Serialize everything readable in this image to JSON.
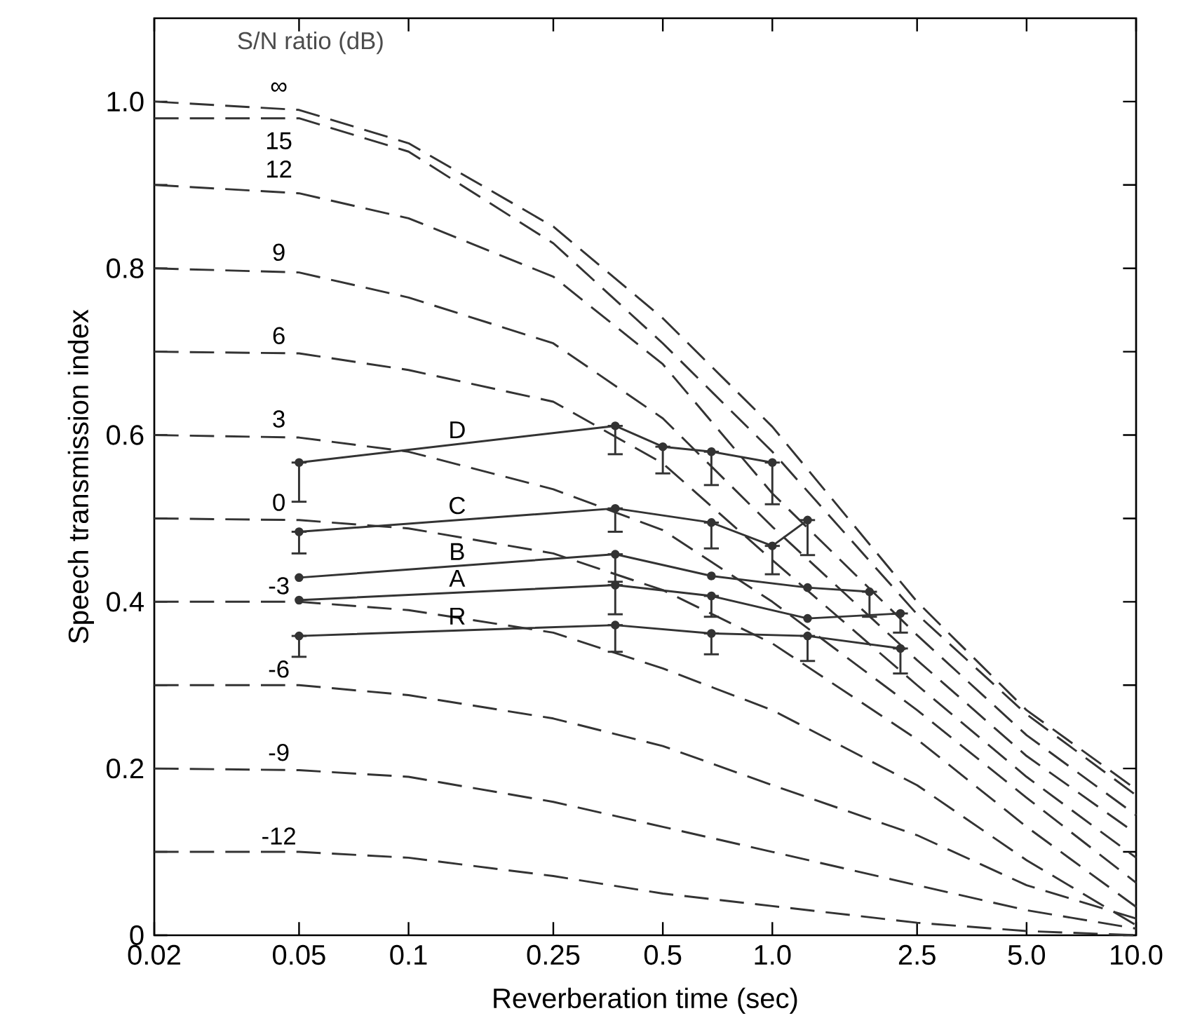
{
  "chart_data": {
    "type": "line",
    "xlabel": "Reverberation  time (sec)",
    "ylabel": "Speech transmission index",
    "legend_title": "S/N ratio (dB)",
    "log": "x",
    "xlim": [
      0.02,
      10
    ],
    "ylim": [
      0,
      1.1
    ],
    "xticks": [
      0.02,
      0.05,
      0.1,
      0.25,
      0.5,
      {
        "value": 1,
        "label": "1.0"
      },
      2.5,
      {
        "value": 5,
        "label": "5.0"
      },
      {
        "value": 10,
        "label": "10.0"
      }
    ],
    "yticks": [
      0,
      {
        "value": 0.1,
        "label": null
      },
      0.2,
      {
        "value": 0.3,
        "label": null
      },
      0.4,
      {
        "value": 0.5,
        "label": null
      },
      0.6,
      {
        "value": 0.7,
        "label": null
      },
      0.8,
      {
        "value": 0.9,
        "label": null
      },
      {
        "value": 1,
        "label": "1.0"
      }
    ],
    "series": [
      {
        "name": "∞",
        "color": "#333333",
        "line_style": "dashed",
        "marker": "none",
        "x": [
          0.02,
          0.05,
          0.1,
          0.25,
          0.5,
          1,
          2.5,
          5,
          10
        ],
        "values": [
          1.0,
          0.99,
          0.95,
          0.85,
          0.74,
          0.61,
          0.4,
          0.27,
          0.175
        ]
      },
      {
        "name": "15",
        "color": "#333333",
        "line_style": "dashed",
        "marker": "none",
        "x": [
          0.02,
          0.05,
          0.1,
          0.25,
          0.5,
          1,
          2.5,
          5,
          10
        ],
        "values": [
          0.98,
          0.98,
          0.94,
          0.83,
          0.71,
          0.58,
          0.385,
          0.265,
          0.168
        ]
      },
      {
        "name": "12",
        "color": "#333333",
        "line_style": "dashed",
        "marker": "none",
        "x": [
          0.02,
          0.05,
          0.1,
          0.25,
          0.5,
          1,
          2.5,
          5,
          10
        ],
        "values": [
          0.9,
          0.89,
          0.86,
          0.79,
          0.685,
          0.53,
          0.36,
          0.24,
          0.144
        ]
      },
      {
        "name": "9",
        "color": "#333333",
        "line_style": "dashed",
        "marker": "none",
        "x": [
          0.02,
          0.05,
          0.1,
          0.25,
          0.5,
          1,
          2.5,
          5,
          10
        ],
        "values": [
          0.8,
          0.795,
          0.765,
          0.71,
          0.62,
          0.49,
          0.33,
          0.215,
          0.122
        ]
      },
      {
        "name": "6",
        "color": "#333333",
        "line_style": "dashed",
        "marker": "none",
        "x": [
          0.02,
          0.05,
          0.1,
          0.25,
          0.5,
          1,
          2.5,
          5,
          10
        ],
        "values": [
          0.7,
          0.698,
          0.678,
          0.64,
          0.566,
          0.45,
          0.3,
          0.19,
          0.093
        ]
      },
      {
        "name": "3",
        "color": "#333333",
        "line_style": "dashed",
        "marker": "none",
        "x": [
          0.02,
          0.05,
          0.1,
          0.25,
          0.5,
          1,
          2.5,
          5,
          10
        ],
        "values": [
          0.6,
          0.597,
          0.58,
          0.535,
          0.486,
          0.4,
          0.27,
          0.165,
          0.063
        ]
      },
      {
        "name": "0",
        "color": "#333333",
        "line_style": "dashed",
        "marker": "none",
        "x": [
          0.02,
          0.05,
          0.1,
          0.25,
          0.5,
          1,
          2.5,
          5,
          10
        ],
        "values": [
          0.5,
          0.498,
          0.488,
          0.458,
          0.414,
          0.35,
          0.235,
          0.13,
          0.034
        ]
      },
      {
        "name": "-3",
        "color": "#333333",
        "line_style": "dashed",
        "marker": "none",
        "x": [
          0.02,
          0.05,
          0.1,
          0.25,
          0.5,
          1,
          2.5,
          5,
          10
        ],
        "values": [
          0.4,
          0.4,
          0.39,
          0.363,
          0.32,
          0.27,
          0.18,
          0.09,
          0.012
        ]
      },
      {
        "name": "-6",
        "color": "#333333",
        "line_style": "dashed",
        "marker": "none",
        "x": [
          0.02,
          0.05,
          0.1,
          0.25,
          0.5,
          1,
          2.5,
          5,
          10
        ],
        "values": [
          0.3,
          0.3,
          0.288,
          0.26,
          0.227,
          0.18,
          0.12,
          0.06,
          0.02
        ]
      },
      {
        "name": "-9",
        "color": "#333333",
        "line_style": "dashed",
        "marker": "none",
        "x": [
          0.02,
          0.05,
          0.1,
          0.25,
          0.5,
          1,
          2.5,
          5,
          10
        ],
        "values": [
          0.2,
          0.198,
          0.19,
          0.16,
          0.13,
          0.1,
          0.06,
          0.03,
          0.008
        ]
      },
      {
        "name": "-12",
        "color": "#333333",
        "line_style": "dashed",
        "marker": "none",
        "x": [
          0.02,
          0.05,
          0.1,
          0.25,
          0.5,
          1,
          2.5,
          5,
          10
        ],
        "values": [
          0.1,
          0.1,
          0.093,
          0.071,
          0.05,
          0.035,
          0.015,
          0.005,
          0
        ]
      },
      {
        "name": "D",
        "color": "#333333",
        "line_style": "solid",
        "marker": "circle",
        "x": [
          0.05,
          0.37,
          0.5,
          0.68,
          1.0
        ],
        "values": [
          0.567,
          0.611,
          0.586,
          0.58,
          0.567
        ],
        "errors": [
          [
            0.52,
            0.567
          ],
          [
            0.577,
            0.611
          ],
          [
            0.554,
            0.586
          ],
          [
            0.54,
            0.58
          ],
          [
            0.517,
            0.567
          ]
        ]
      },
      {
        "name": "C",
        "color": "#333333",
        "line_style": "solid",
        "marker": "circle",
        "x": [
          0.05,
          0.37,
          0.68,
          1.0,
          1.25
        ],
        "values": [
          0.484,
          0.512,
          0.495,
          0.467,
          0.498
        ],
        "errors": [
          [
            0.458,
            0.484
          ],
          [
            0.484,
            0.512
          ],
          [
            0.464,
            0.495
          ],
          [
            0.433,
            0.467
          ],
          [
            0.456,
            0.498
          ]
        ]
      },
      {
        "name": "B",
        "color": "#333333",
        "line_style": "solid",
        "marker": "circle",
        "x": [
          0.05,
          0.37,
          0.68,
          1.25,
          1.85
        ],
        "values": [
          0.429,
          0.457,
          0.431,
          0.417,
          0.412
        ],
        "errors": [
          null,
          [
            0.424,
            0.457
          ],
          null,
          null,
          [
            0.382,
            0.412
          ]
        ]
      },
      {
        "name": "A",
        "color": "#333333",
        "line_style": "solid",
        "marker": "circle",
        "x": [
          0.05,
          0.37,
          0.68,
          1.25,
          2.25
        ],
        "values": [
          0.402,
          0.42,
          0.407,
          0.38,
          0.386
        ],
        "errors": [
          null,
          [
            0.385,
            0.42
          ],
          [
            0.382,
            0.407
          ],
          null,
          [
            0.363,
            0.386
          ]
        ]
      },
      {
        "name": "R",
        "color": "#333333",
        "line_style": "solid",
        "marker": "circle",
        "x": [
          0.05,
          0.37,
          0.68,
          1.25,
          2.25
        ],
        "values": [
          0.359,
          0.372,
          0.362,
          0.359,
          0.344
        ],
        "errors": [
          [
            0.334,
            0.359
          ],
          [
            0.34,
            0.372
          ],
          [
            0.337,
            0.362
          ],
          [
            0.329,
            0.359
          ],
          [
            0.314,
            0.344
          ]
        ]
      }
    ]
  }
}
